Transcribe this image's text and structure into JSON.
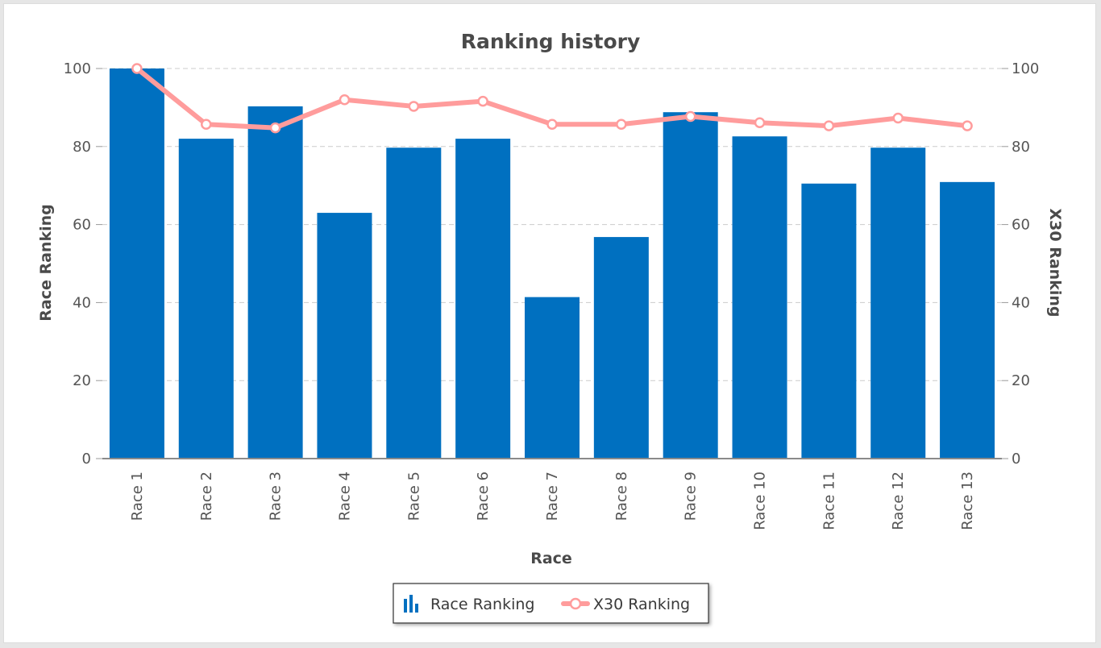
{
  "chart_data": {
    "type": "bar",
    "title": "Ranking history",
    "xlabel": "Race",
    "ylabel": "Race Ranking",
    "y2label": "X30 Ranking",
    "ylim": [
      0,
      100
    ],
    "y2lim": [
      0,
      100
    ],
    "yticks": [
      0,
      20,
      40,
      60,
      80,
      100
    ],
    "grid": true,
    "legend_position": "bottom",
    "categories": [
      "Race 1",
      "Race 2",
      "Race 3",
      "Race 4",
      "Race 5",
      "Race 6",
      "Race 7",
      "Race 8",
      "Race 9",
      "Race 10",
      "Race 11",
      "Race 12",
      "Race 13"
    ],
    "series": [
      {
        "name": "Race Ranking",
        "type": "bar",
        "axis": "left",
        "color": "#0070c0",
        "values": [
          100,
          82,
          90.3,
          63,
          79.7,
          82,
          41.4,
          56.8,
          88.8,
          82.6,
          70.5,
          79.7,
          70.9
        ]
      },
      {
        "name": "X30 Ranking",
        "type": "line",
        "axis": "right",
        "color": "#ff9c9c",
        "values": [
          100,
          85.7,
          84.8,
          92,
          90.3,
          91.6,
          85.7,
          85.7,
          87.7,
          86.1,
          85.3,
          87.3,
          85.3
        ]
      }
    ]
  },
  "legend": {
    "items": [
      {
        "label": "Race Ranking",
        "icon": "bar-chart-icon"
      },
      {
        "label": "X30 Ranking",
        "icon": "line-marker-icon"
      }
    ]
  }
}
